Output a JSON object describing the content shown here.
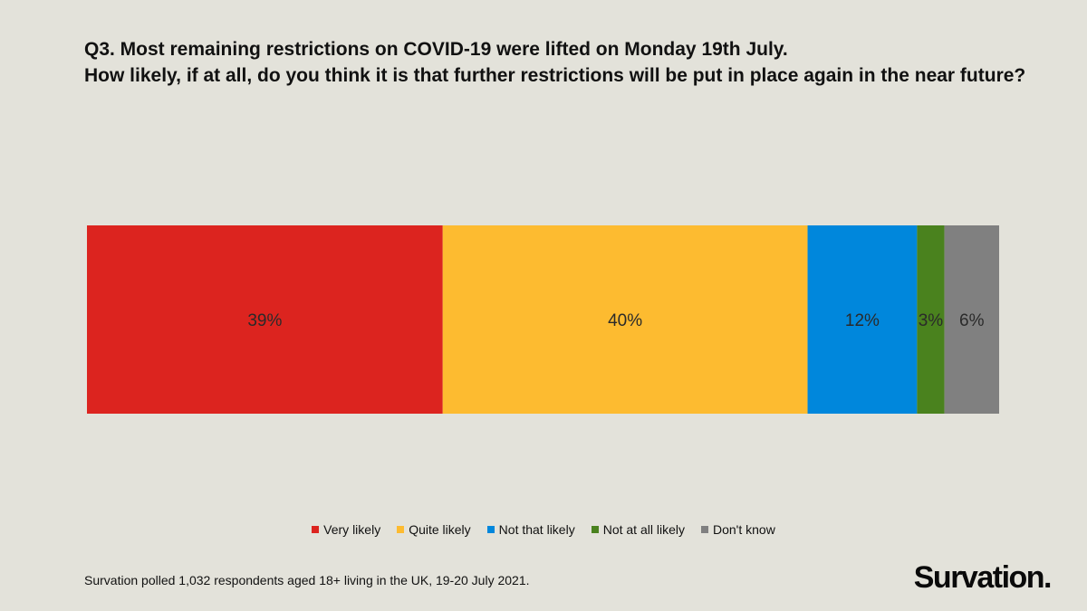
{
  "chart_data": {
    "type": "bar",
    "orientation": "horizontal-stacked",
    "title": [
      "Q3. Most remaining restrictions on COVID-19 were lifted on Monday 19th July.",
      "How likely, if at all, do you think it is that further restrictions will be put in place again in the near future?"
    ],
    "xlabel": "",
    "ylabel": "",
    "series": [
      {
        "name": "Very likely",
        "value": 39,
        "label": "39%",
        "color": "#dc241f"
      },
      {
        "name": "Quite likely",
        "value": 40,
        "label": "40%",
        "color": "#fdbb30"
      },
      {
        "name": "Not that likely",
        "value": 12,
        "label": "12%",
        "color": "#0087dc"
      },
      {
        "name": "Not at all likely",
        "value": 3,
        "label": "3%",
        "color": "#4a821e"
      },
      {
        "name": "Don't know",
        "value": 6,
        "label": "6%",
        "color": "#808080"
      }
    ],
    "legend_position": "bottom"
  },
  "footnote": "Survation polled 1,032 respondents aged 18+ living in the UK,  19-20 July 2021.",
  "brand": "Survation."
}
